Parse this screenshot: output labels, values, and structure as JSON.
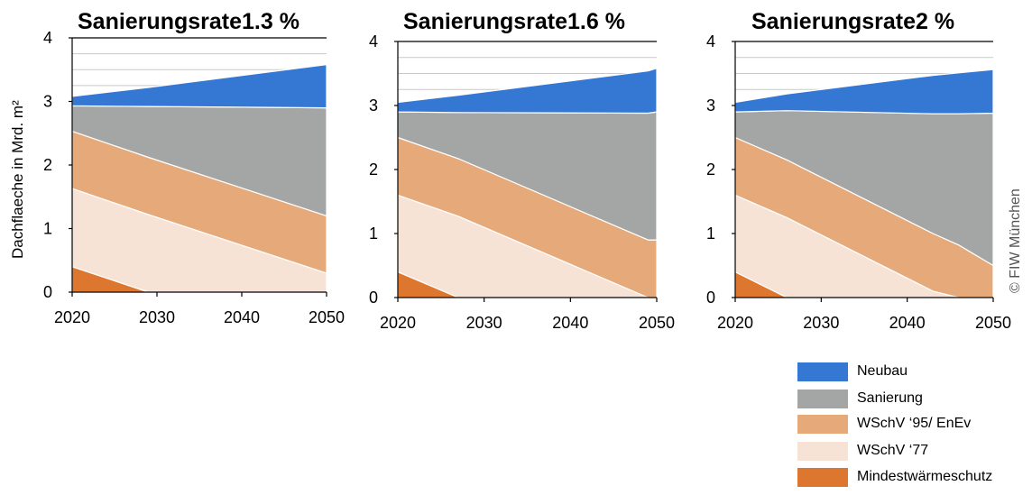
{
  "ylabel": "Dachflaeche in Mrd. m²",
  "credit": "© FIW München",
  "colors": {
    "neubau": "#3478d4",
    "sanierung": "#a3a6a5",
    "wschv95": "#e6a97a",
    "wschv77": "#f6e3d6",
    "mindest": "#dd7730",
    "grid": "#c9c9c9"
  },
  "legend": [
    {
      "label": "Neubau",
      "color": "#3478d4"
    },
    {
      "label": "Sanierung",
      "color": "#a3a6a5"
    },
    {
      "label": "WSchV ‘95/ EnEv",
      "color": "#e6a97a"
    },
    {
      "label": "WSchV ‘77",
      "color": "#f6e3d6"
    },
    {
      "label": "Mindestwärmeschutz",
      "color": "#dd7730"
    }
  ],
  "chart_data": [
    {
      "type": "area",
      "title": "Sanierungsrate1.3 %",
      "ylabel": "Dachflaeche in Mrd. m²",
      "xlim": [
        2020,
        2050
      ],
      "ylim": [
        0,
        4
      ],
      "xticks": [
        2020,
        2030,
        2040,
        2050
      ],
      "yticks": [
        0,
        1,
        2,
        3,
        4
      ],
      "grid": true,
      "stacked": true,
      "series": [
        {
          "name": "Mindestwärmeschutz",
          "color": "#dd7730",
          "points": [
            [
              2020,
              0.4
            ],
            [
              2029,
              0.0
            ],
            [
              2050,
              0.0
            ]
          ]
        },
        {
          "name": "WSchV ‘77",
          "color": "#f6e3d6",
          "points": [
            [
              2020,
              1.23
            ],
            [
              2029,
              1.22
            ],
            [
              2050,
              0.3
            ]
          ]
        },
        {
          "name": "WSchV ‘95/ EnEv",
          "color": "#e6a97a",
          "points": [
            [
              2020,
              0.9
            ],
            [
              2029,
              0.9
            ],
            [
              2050,
              0.9
            ]
          ]
        },
        {
          "name": "Sanierung",
          "color": "#a3a6a5",
          "points": [
            [
              2020,
              0.4
            ],
            [
              2029,
              0.8
            ],
            [
              2050,
              1.7
            ]
          ]
        },
        {
          "name": "Neubau",
          "color": "#3478d4",
          "points": [
            [
              2020,
              0.15
            ],
            [
              2029,
              0.3
            ],
            [
              2050,
              0.68
            ]
          ]
        }
      ]
    },
    {
      "type": "area",
      "title": "Sanierungsrate1.6 %",
      "xlim": [
        2020,
        2050
      ],
      "ylim": [
        0,
        4
      ],
      "xticks": [
        2020,
        2030,
        2040,
        2050
      ],
      "yticks": [
        0,
        1,
        2,
        3,
        4
      ],
      "grid": true,
      "stacked": true,
      "series": [
        {
          "name": "Mindestwärmeschutz",
          "color": "#dd7730",
          "points": [
            [
              2020,
              0.4
            ],
            [
              2027,
              0.0
            ],
            [
              2050,
              0.0
            ]
          ]
        },
        {
          "name": "WSchV ‘77",
          "color": "#f6e3d6",
          "points": [
            [
              2020,
              1.2
            ],
            [
              2027,
              1.27
            ],
            [
              2049,
              0.0
            ],
            [
              2050,
              0.0
            ]
          ]
        },
        {
          "name": "WSchV ‘95/ EnEv",
          "color": "#e6a97a",
          "points": [
            [
              2020,
              0.9
            ],
            [
              2027,
              0.9
            ],
            [
              2049,
              0.9
            ],
            [
              2050,
              0.9
            ]
          ]
        },
        {
          "name": "Sanierung",
          "color": "#a3a6a5",
          "points": [
            [
              2020,
              0.4
            ],
            [
              2027,
              0.72
            ],
            [
              2049,
              1.98
            ],
            [
              2050,
              2.0
            ]
          ]
        },
        {
          "name": "Neubau",
          "color": "#3478d4",
          "points": [
            [
              2020,
              0.15
            ],
            [
              2027,
              0.27
            ],
            [
              2049,
              0.66
            ],
            [
              2050,
              0.68
            ]
          ]
        }
      ]
    },
    {
      "type": "area",
      "title": "Sanierungsrate2 %",
      "xlim": [
        2020,
        2050
      ],
      "ylim": [
        0,
        4
      ],
      "xticks": [
        2020,
        2030,
        2040,
        2050
      ],
      "yticks": [
        0,
        1,
        2,
        3,
        4
      ],
      "grid": true,
      "stacked": true,
      "series": [
        {
          "name": "Mindestwärmeschutz",
          "color": "#dd7730",
          "points": [
            [
              2020,
              0.4
            ],
            [
              2026,
              0.0
            ],
            [
              2043,
              0.0
            ],
            [
              2046,
              0.0
            ],
            [
              2050,
              0.0
            ]
          ]
        },
        {
          "name": "WSchV ‘77",
          "color": "#f6e3d6",
          "points": [
            [
              2020,
              1.2
            ],
            [
              2026,
              1.25
            ],
            [
              2043,
              0.1
            ],
            [
              2046,
              0.0
            ],
            [
              2050,
              0.0
            ]
          ]
        },
        {
          "name": "WSchV ‘95/ EnEv",
          "color": "#e6a97a",
          "points": [
            [
              2020,
              0.9
            ],
            [
              2026,
              0.9
            ],
            [
              2043,
              0.9
            ],
            [
              2046,
              0.82
            ],
            [
              2050,
              0.5
            ]
          ]
        },
        {
          "name": "Sanierung",
          "color": "#a3a6a5",
          "points": [
            [
              2020,
              0.4
            ],
            [
              2026,
              0.77
            ],
            [
              2043,
              1.87
            ],
            [
              2046,
              2.05
            ],
            [
              2050,
              2.38
            ]
          ]
        },
        {
          "name": "Neubau",
          "color": "#3478d4",
          "points": [
            [
              2020,
              0.15
            ],
            [
              2026,
              0.26
            ],
            [
              2043,
              0.6
            ],
            [
              2046,
              0.64
            ],
            [
              2050,
              0.68
            ]
          ]
        }
      ]
    }
  ]
}
